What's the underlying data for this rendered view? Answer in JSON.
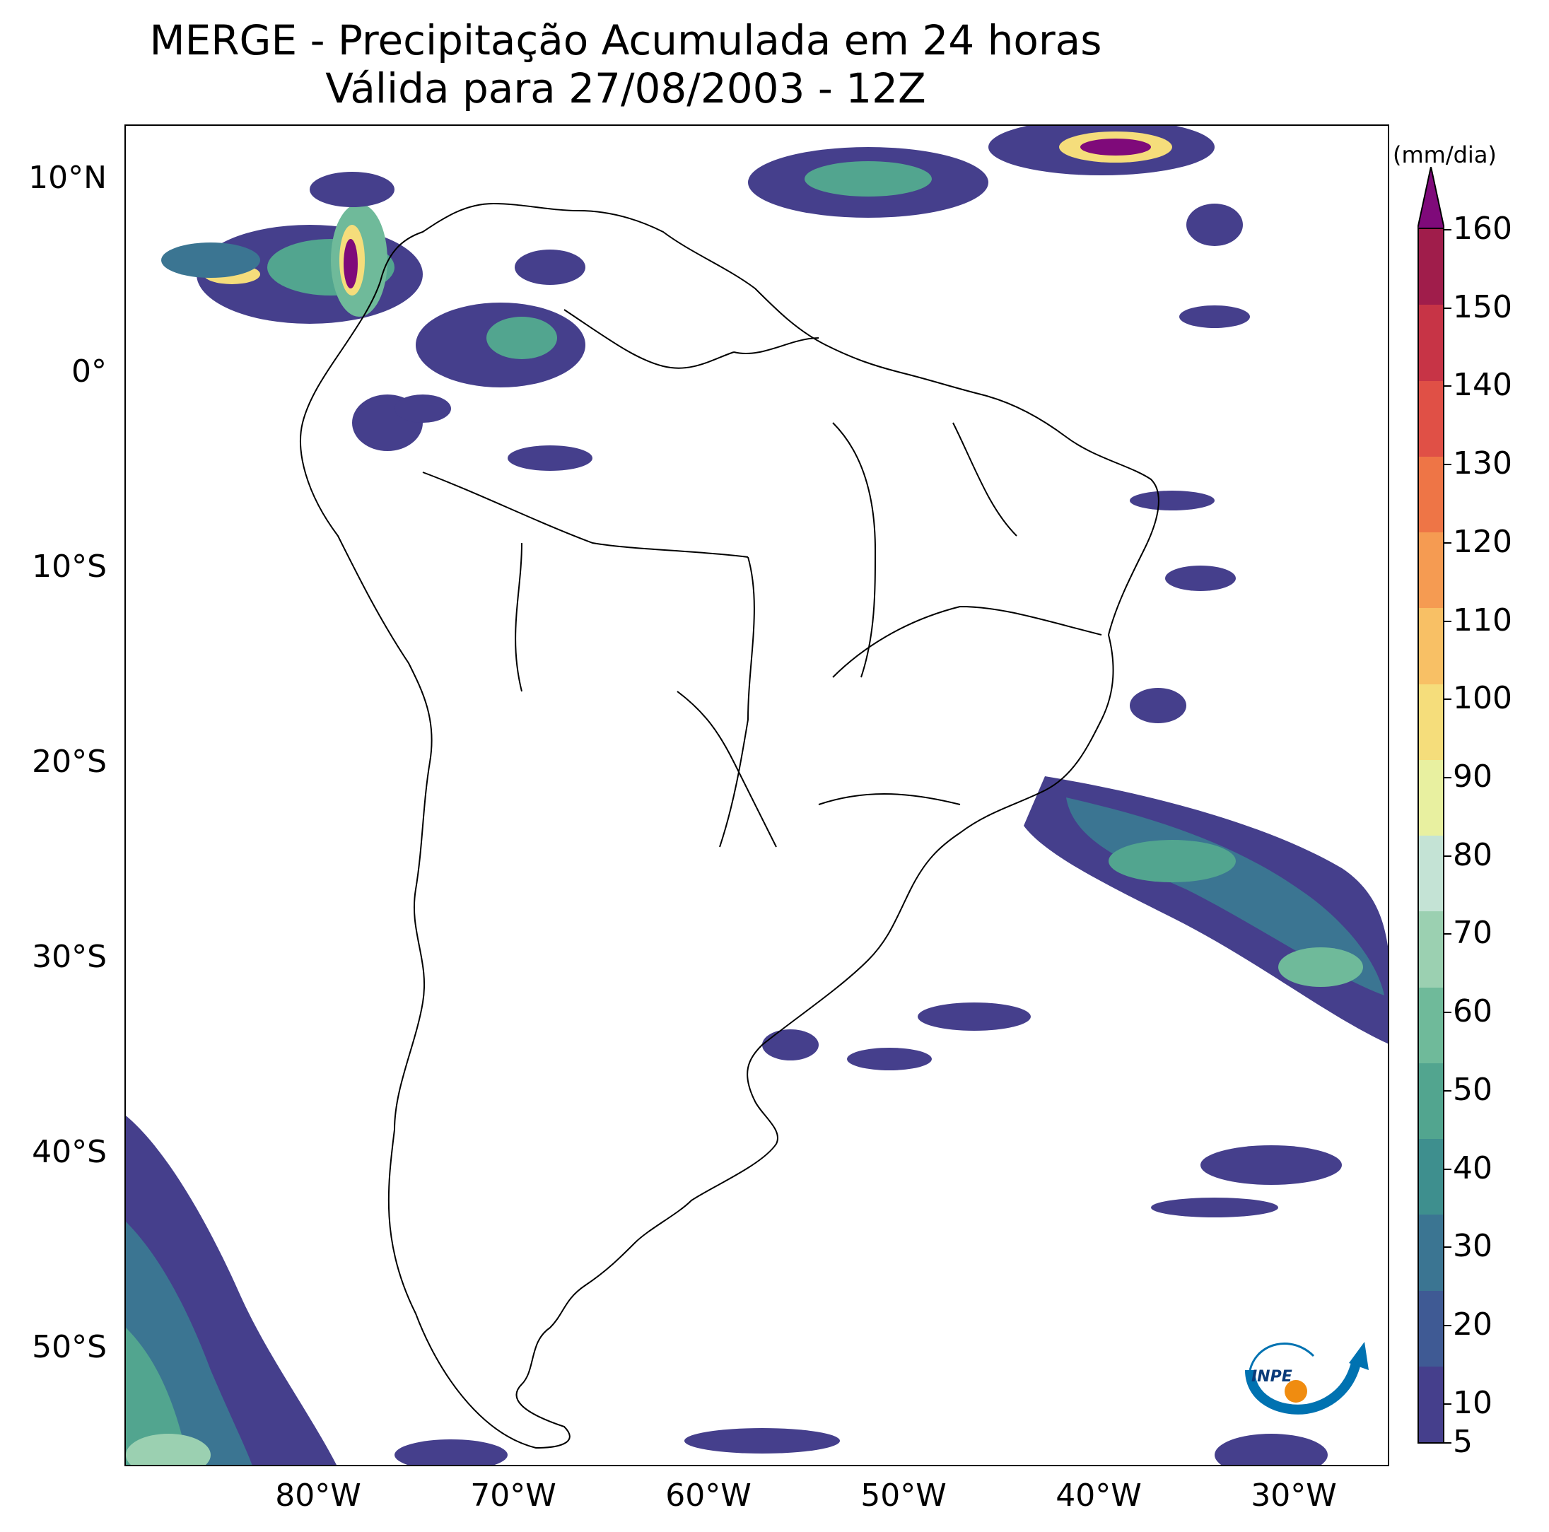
{
  "title": {
    "line1": "MERGE - Precipitação Acumulada em 24 horas",
    "line2": "Válida para 27/08/2003 - 12Z"
  },
  "map": {
    "lat_ticks": [
      "10°N",
      "0°",
      "10°S",
      "20°S",
      "30°S",
      "40°S",
      "50°S"
    ],
    "lon_ticks": [
      "80°W",
      "70°W",
      "60°W",
      "50°W",
      "40°W",
      "30°W"
    ]
  },
  "colorbar": {
    "unit": "(mm/dia)",
    "ticks": [
      "160",
      "150",
      "140",
      "130",
      "120",
      "110",
      "100",
      "90",
      "80",
      "70",
      "60",
      "50",
      "40",
      "30",
      "20",
      "10",
      "5"
    ],
    "colors": [
      "#453f8c",
      "#3f5a94",
      "#3b7592",
      "#3e8f8e",
      "#52a58f",
      "#6fba9a",
      "#9bd0b1",
      "#c4e3d5",
      "#e8f0a0",
      "#f5dd7b",
      "#f8c065",
      "#f59b52",
      "#ee7546",
      "#e05046",
      "#c73446",
      "#a01d4b",
      "#7f0a7a"
    ],
    "extend_color": "#7f0a7a"
  },
  "logo": {
    "text": "INPE"
  }
}
